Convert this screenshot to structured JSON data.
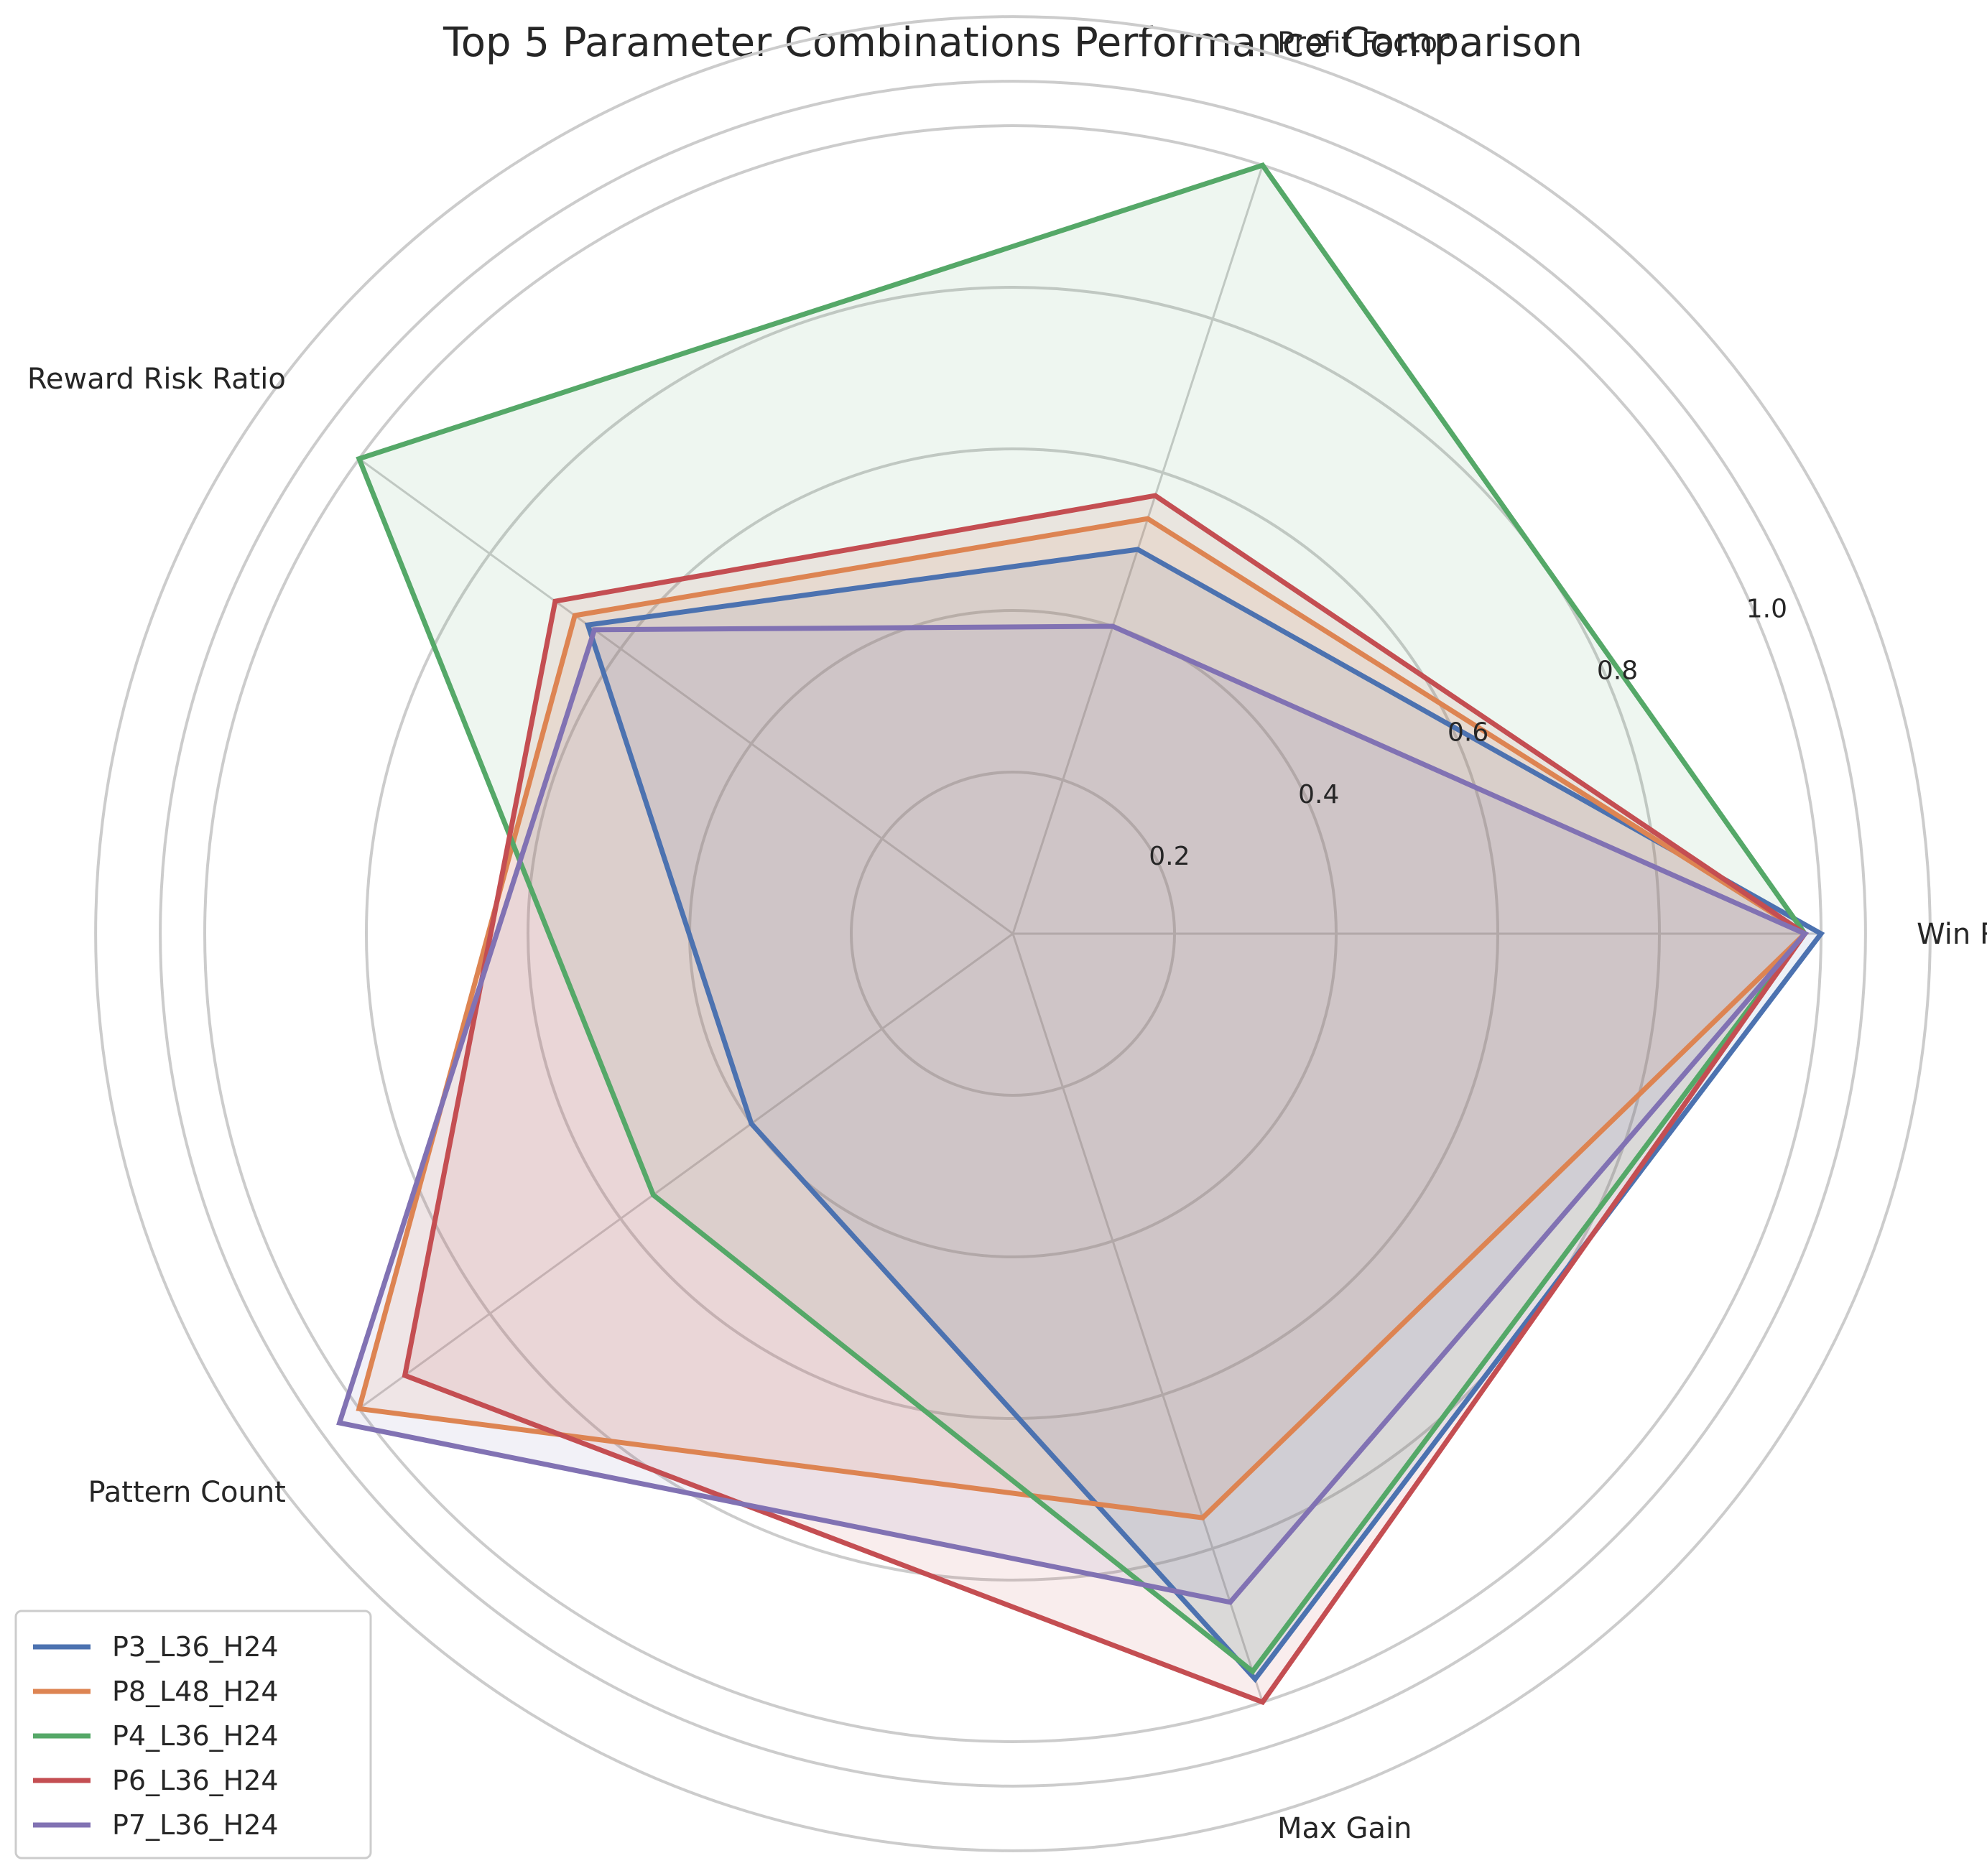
{
  "chart_data": {
    "type": "radar",
    "title": "Top 5 Parameter Combinations Performance Comparison",
    "axes": [
      "Win Rate",
      "Profit Factor",
      "Reward Risk Ratio",
      "Pattern Count",
      "Max Gain"
    ],
    "rlim": [
      0,
      1.0
    ],
    "rticks": [
      0.2,
      0.4,
      0.6,
      0.8,
      1.0
    ],
    "rtick_labels": [
      "0.2",
      "0.4",
      "0.6",
      "0.8",
      "1.0"
    ],
    "grid": true,
    "legend_position": "lower-left",
    "series": [
      {
        "name": "P3_L36_H24",
        "color": "#4c72b0",
        "values": [
          1.0,
          0.5,
          0.65,
          0.4,
          0.97
        ]
      },
      {
        "name": "P8_L48_H24",
        "color": "#dd8452",
        "values": [
          0.98,
          0.54,
          0.67,
          1.0,
          0.76
        ]
      },
      {
        "name": "P4_L36_H24",
        "color": "#55a868",
        "values": [
          0.98,
          1.0,
          1.0,
          0.55,
          0.96
        ]
      },
      {
        "name": "P6_L36_H24",
        "color": "#c44e52",
        "values": [
          0.98,
          0.57,
          0.7,
          0.93,
          1.0
        ]
      },
      {
        "name": "P7_L36_H24",
        "color": "#8172b3",
        "values": [
          0.98,
          0.4,
          0.64,
          1.03,
          0.87
        ]
      }
    ]
  }
}
